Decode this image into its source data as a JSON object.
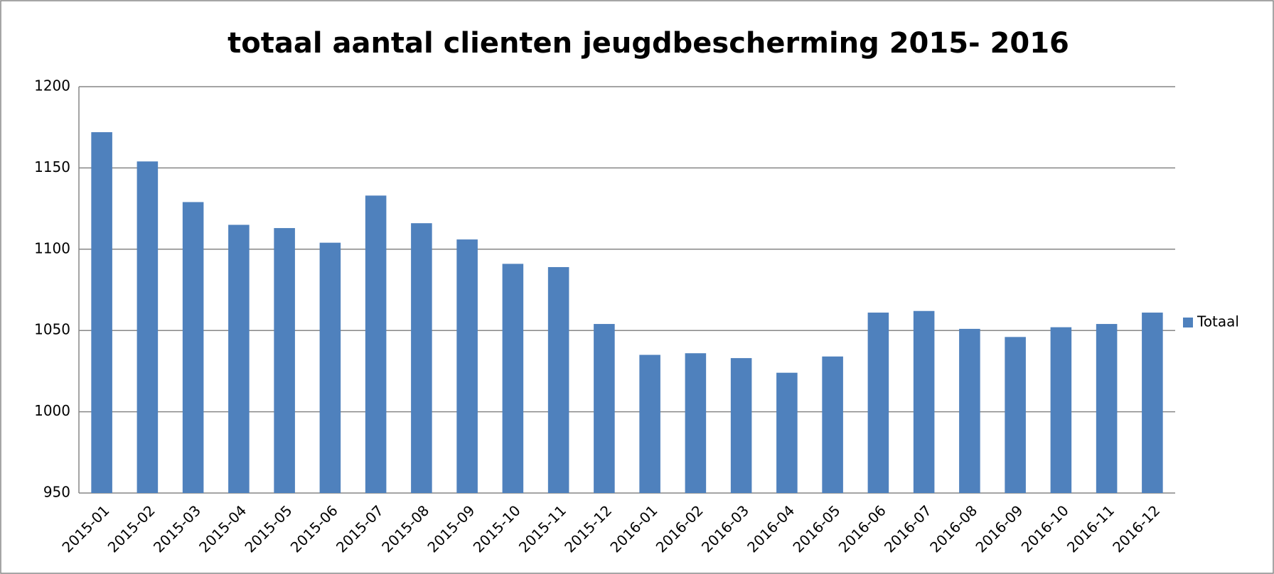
{
  "chart_data": {
    "type": "bar",
    "title": "totaal aantal clienten jeugdbescherming 2015- 2016",
    "categories": [
      "2015-01",
      "2015-02",
      "2015-03",
      "2015-04",
      "2015-05",
      "2015-06",
      "2015-07",
      "2015-08",
      "2015-09",
      "2015-10",
      "2015-11",
      "2015-12",
      "2016-01",
      "2016-02",
      "2016-03",
      "2016-04",
      "2016-05",
      "2016-06",
      "2016-07",
      "2016-08",
      "2016-09",
      "2016-10",
      "2016-11",
      "2016-12"
    ],
    "series": [
      {
        "name": "Totaal",
        "color": "#4f81bd",
        "values": [
          1172,
          1154,
          1129,
          1115,
          1113,
          1104,
          1133,
          1116,
          1106,
          1091,
          1089,
          1054,
          1035,
          1036,
          1033,
          1024,
          1034,
          1061,
          1062,
          1051,
          1046,
          1052,
          1054,
          1061
        ]
      }
    ],
    "ylim": [
      950,
      1200
    ],
    "yticks": [
      950,
      1000,
      1050,
      1100,
      1150,
      1200
    ],
    "grid": true,
    "legend": "right"
  }
}
